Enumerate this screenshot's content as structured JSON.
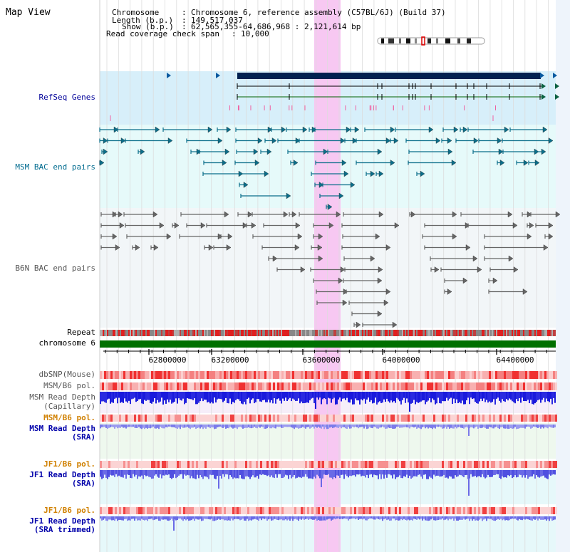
{
  "title": "Map View",
  "header": {
    "chromosome_key": "Chromosome",
    "chromosome_val": "Chromosome 6, reference assembly (C57BL/6J) (Build 37)",
    "length_key": "Length (b.p.)",
    "length_val": "149,517,037",
    "show_key": "Show (b.p.)",
    "show_val": "62,565,355-64,686,968 : 2,121,614 bp",
    "coverage_key": "Read coverage check span",
    "coverage_val": "10,000"
  },
  "axis": {
    "ticks": [
      "62800000",
      "63200000",
      "63600000",
      "64000000",
      "64400000"
    ],
    "range": [
      62565355,
      64686968
    ]
  },
  "tracks": {
    "refseq": {
      "label": "RefSeq Genes",
      "color": "#000099"
    },
    "msm_bac": {
      "label": "MSM BAC end pairs",
      "color": "#006b8f"
    },
    "b6n_bac": {
      "label": "B6N BAC end pairs",
      "color": "#555555"
    },
    "repeat": {
      "label": "Repeat"
    },
    "chromosome": {
      "label": "chromosome 6"
    },
    "dbsnp": {
      "label": "dbSNP(Mouse)"
    },
    "msm_b6_pol_1": {
      "label": "MSM/B6 pol."
    },
    "msm_depth_cap": {
      "label": "MSM Read Depth",
      "sub": "(Capillary)"
    },
    "msm_b6_pol_2": {
      "label": "MSM/B6 pol.",
      "color": "#d08000"
    },
    "msm_depth_sra": {
      "label": "MSM Read Depth",
      "sub": "(SRA)",
      "color": "#0000aa"
    },
    "jf1_b6_pol_1": {
      "label": "JF1/B6 pol.",
      "color": "#d08000"
    },
    "jf1_depth_sra": {
      "label": "JF1 Read Depth",
      "sub": "(SRA)",
      "color": "#0000aa"
    },
    "jf1_b6_pol_2": {
      "label": "JF1/B6 pol.",
      "color": "#d08000"
    },
    "jf1_depth_trim": {
      "label": "JF1 Read Depth",
      "sub": "(SRA trimmed)",
      "color": "#0000aa"
    }
  },
  "colors": {
    "highlight": "#f7c8f2",
    "refseq_bg": "#d7effa",
    "bac_bg": "#e6fafa",
    "b6n_bg": "#f2f6f8",
    "chromosome_bar": "#007000",
    "repeat_red": "#e02020",
    "depth_dark": "#1a1adc",
    "depth_light": "#6a6ae6"
  }
}
